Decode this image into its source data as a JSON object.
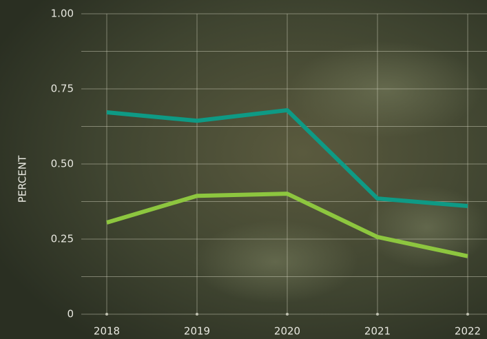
{
  "chart_data": {
    "type": "line",
    "y_label": "PERCENT",
    "categories": [
      "2018",
      "2019",
      "2020",
      "2021",
      "2022"
    ],
    "series": [
      {
        "color": "#0e9a85",
        "values": [
          0.672,
          0.644,
          0.679,
          0.385,
          0.36
        ]
      },
      {
        "color": "#8dc63f",
        "values": [
          0.305,
          0.394,
          0.401,
          0.257,
          0.193
        ]
      }
    ],
    "ylim": [
      0,
      1
    ],
    "yticks": [
      0,
      0.25,
      {
        "value": 0.5,
        "label": "0.50"
      },
      0.75,
      {
        "value": 1,
        "label": "1.00"
      }
    ],
    "minor_yticks": [
      0.125,
      0.375,
      0.625,
      0.875
    ],
    "grid": true
  }
}
